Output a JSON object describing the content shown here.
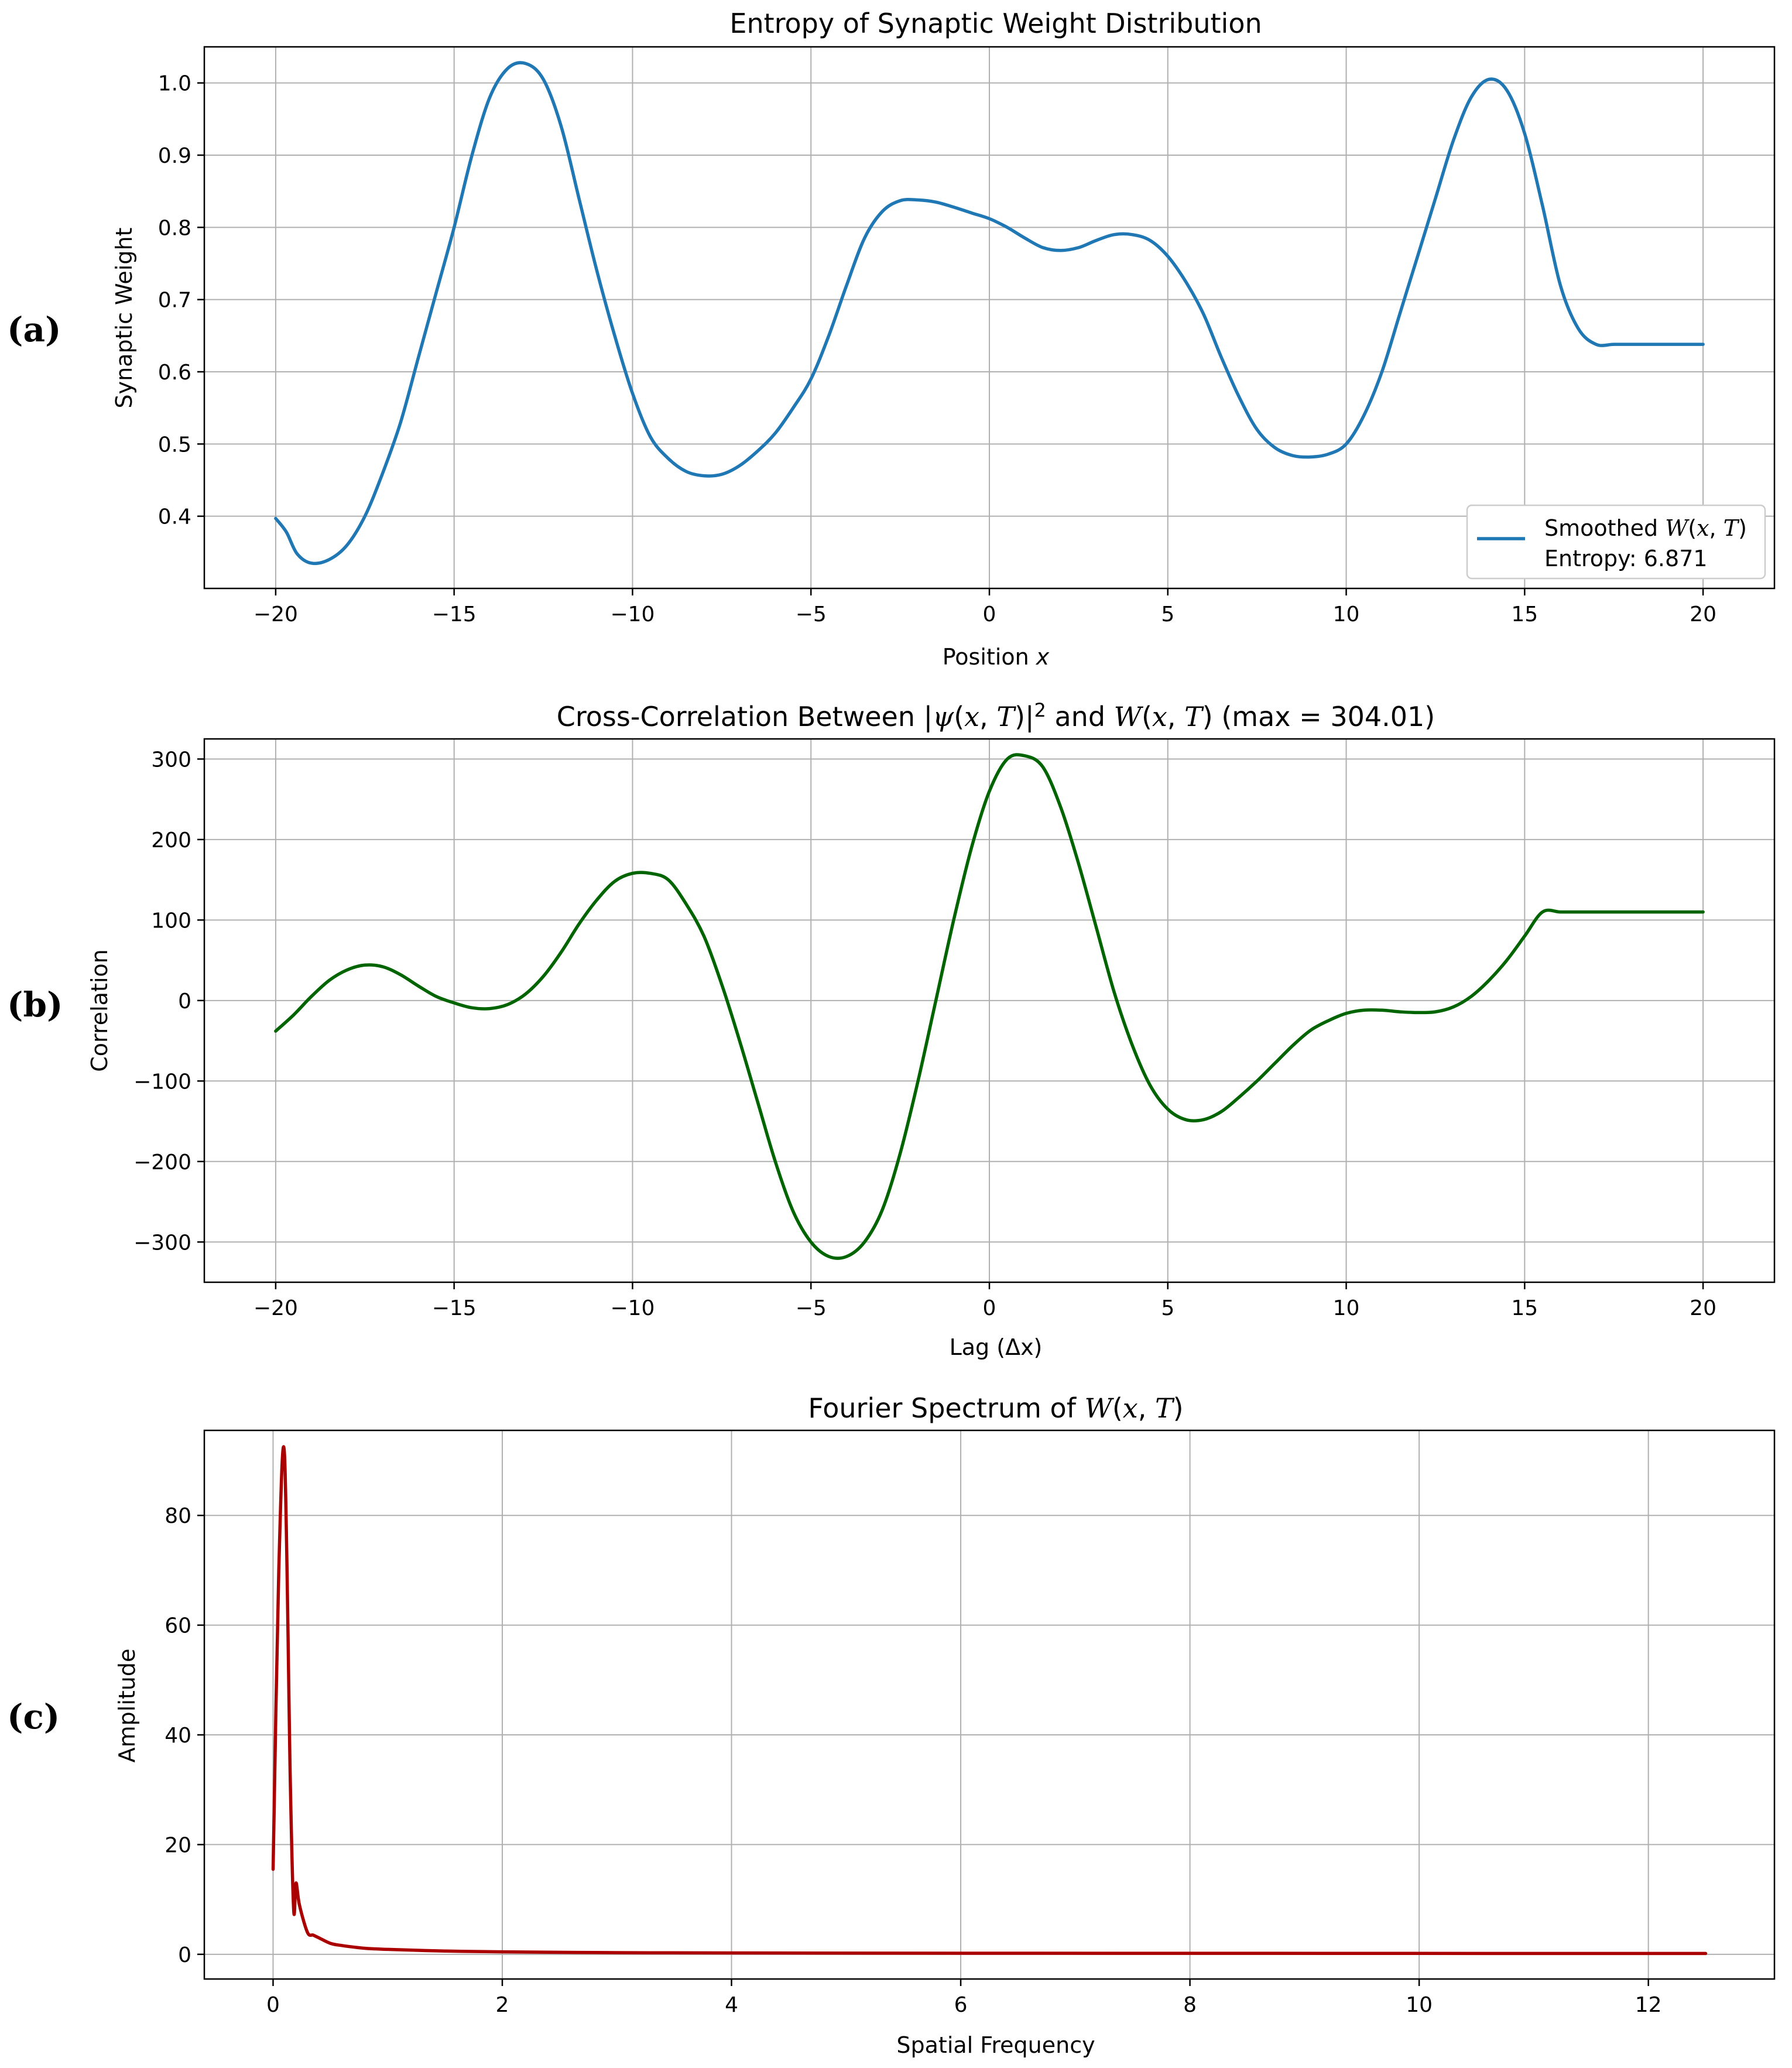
{
  "panels": [
    {
      "letter": "(a)"
    },
    {
      "letter": "(b)"
    },
    {
      "letter": "(c)"
    }
  ],
  "chart_data": [
    {
      "type": "line",
      "title": "Entropy of Synaptic Weight Distribution",
      "xlabel": "Position x",
      "ylabel": "Synaptic Weight",
      "xlim": [
        -22,
        22
      ],
      "ylim": [
        0.3,
        1.05
      ],
      "xticks": [
        -20,
        -15,
        -10,
        -5,
        0,
        5,
        10,
        15,
        20
      ],
      "yticks": [
        0.4,
        0.5,
        0.6,
        0.7,
        0.8,
        0.9,
        1.0
      ],
      "xtick_labels": [
        "−20",
        "−15",
        "−10",
        "−5",
        "0",
        "5",
        "10",
        "15",
        "20"
      ],
      "ytick_labels": [
        "0.4",
        "0.5",
        "0.6",
        "0.7",
        "0.8",
        "0.9",
        "1.0"
      ],
      "grid": true,
      "color": "#1f77b4",
      "legend": {
        "position": "lower right",
        "entries": [
          "Smoothed W(x, T)",
          "Entropy: 6.871"
        ]
      },
      "series": [
        {
          "name": "Smoothed W(x, T)",
          "x": [
            -20,
            -19.7,
            -19.4,
            -19,
            -18.5,
            -18,
            -17.5,
            -17,
            -16.5,
            -16,
            -15.5,
            -15,
            -14.5,
            -14,
            -13.5,
            -13,
            -12.5,
            -12,
            -11.5,
            -11,
            -10.5,
            -10,
            -9.5,
            -9,
            -8.5,
            -8,
            -7.5,
            -7,
            -6.5,
            -6,
            -5.5,
            -5,
            -4.5,
            -4,
            -3.5,
            -3,
            -2.5,
            -2,
            -1.5,
            -1,
            -0.5,
            0,
            0.5,
            1,
            1.5,
            2,
            2.5,
            3,
            3.5,
            4,
            4.5,
            5,
            5.5,
            6,
            6.5,
            7,
            7.5,
            8,
            8.5,
            9,
            9.5,
            10,
            10.5,
            11,
            11.5,
            12,
            12.5,
            13,
            13.5,
            14,
            14.5,
            15,
            15.5,
            16,
            16.5,
            17,
            17.5,
            18,
            18.5,
            19,
            19.5,
            19.8,
            20
          ],
          "y": [
            0.397,
            0.378,
            0.348,
            0.335,
            0.34,
            0.36,
            0.4,
            0.46,
            0.53,
            0.62,
            0.71,
            0.8,
            0.9,
            0.98,
            1.02,
            1.027,
            1.005,
            0.94,
            0.84,
            0.74,
            0.65,
            0.57,
            0.51,
            0.48,
            0.462,
            0.456,
            0.458,
            0.47,
            0.49,
            0.515,
            0.55,
            0.59,
            0.65,
            0.72,
            0.785,
            0.822,
            0.837,
            0.838,
            0.835,
            0.828,
            0.82,
            0.812,
            0.8,
            0.785,
            0.772,
            0.768,
            0.772,
            0.782,
            0.79,
            0.79,
            0.782,
            0.76,
            0.725,
            0.68,
            0.62,
            0.565,
            0.52,
            0.495,
            0.484,
            0.482,
            0.486,
            0.5,
            0.54,
            0.6,
            0.68,
            0.76,
            0.84,
            0.92,
            0.98,
            1.005,
            0.99,
            0.93,
            0.83,
            0.72,
            0.66,
            0.638,
            0.638,
            0.638,
            0.638,
            0.638,
            0.638,
            0.638,
            0.638
          ]
        }
      ]
    },
    {
      "type": "line",
      "title": "Cross-Correlation Between |ψ(x, T)|² and W(x, T) (max = 304.01)",
      "xlabel": "Lag (Δx)",
      "ylabel": "Correlation",
      "xlim": [
        -22,
        22
      ],
      "ylim": [
        -350,
        325
      ],
      "xticks": [
        -20,
        -15,
        -10,
        -5,
        0,
        5,
        10,
        15,
        20
      ],
      "yticks": [
        -300,
        -200,
        -100,
        0,
        100,
        200,
        300
      ],
      "xtick_labels": [
        "−20",
        "−15",
        "−10",
        "−5",
        "0",
        "5",
        "10",
        "15",
        "20"
      ],
      "ytick_labels": [
        "−300",
        "−200",
        "−100",
        "0",
        "100",
        "200",
        "300"
      ],
      "grid": true,
      "color": "#006400",
      "series": [
        {
          "x": [
            -20,
            -19.5,
            -19,
            -18.5,
            -18,
            -17.5,
            -17,
            -16.5,
            -16,
            -15.5,
            -15,
            -14.5,
            -14,
            -13.5,
            -13,
            -12.5,
            -12,
            -11.5,
            -11,
            -10.5,
            -10,
            -9.5,
            -9,
            -8.5,
            -8,
            -7.5,
            -7,
            -6.5,
            -6,
            -5.5,
            -5,
            -4.5,
            -4,
            -3.5,
            -3,
            -2.5,
            -2,
            -1.5,
            -1,
            -0.5,
            0,
            0.5,
            1,
            1.5,
            2,
            2.5,
            3,
            3.5,
            4,
            4.5,
            5,
            5.5,
            6,
            6.5,
            7,
            7.5,
            8,
            8.5,
            9,
            9.5,
            10,
            10.5,
            11,
            11.5,
            12,
            12.5,
            13,
            13.5,
            14,
            14.5,
            15,
            15.5,
            16,
            16.5,
            17,
            17.5,
            18,
            18.5,
            19,
            19.5,
            20
          ],
          "y": [
            -38,
            -18,
            5,
            25,
            38,
            44,
            42,
            32,
            18,
            5,
            -3,
            -9,
            -10,
            -5,
            8,
            30,
            60,
            95,
            125,
            148,
            158,
            158,
            150,
            120,
            80,
            20,
            -50,
            -125,
            -200,
            -262,
            -300,
            -318,
            -318,
            -300,
            -260,
            -190,
            -100,
            0,
            100,
            190,
            260,
            300,
            304,
            290,
            240,
            170,
            90,
            10,
            -55,
            -105,
            -135,
            -148,
            -148,
            -138,
            -120,
            -100,
            -78,
            -56,
            -37,
            -25,
            -16,
            -12,
            -12,
            -14,
            -15,
            -14,
            -8,
            5,
            25,
            50,
            80,
            110,
            110,
            110,
            110,
            110,
            110,
            110,
            110,
            110,
            110
          ]
        }
      ]
    },
    {
      "type": "line",
      "title": "Fourier Spectrum of W(x, T)",
      "xlabel": "Spatial Frequency",
      "ylabel": "Amplitude",
      "xlim": [
        -0.6,
        13.1
      ],
      "ylim": [
        -4.5,
        95.5
      ],
      "xticks": [
        0,
        2,
        4,
        6,
        8,
        10,
        12
      ],
      "yticks": [
        0,
        20,
        40,
        60,
        80
      ],
      "xtick_labels": [
        "0",
        "2",
        "4",
        "6",
        "8",
        "10",
        "12"
      ],
      "ytick_labels": [
        "0",
        "20",
        "40",
        "60",
        "80"
      ],
      "grid": true,
      "color": "#aa0000",
      "series": [
        {
          "x": [
            0.0,
            0.05,
            0.1,
            0.15,
            0.18,
            0.2,
            0.23,
            0.3,
            0.35,
            0.4,
            0.5,
            0.6,
            0.8,
            1.0,
            1.5,
            2.0,
            3.0,
            4.0,
            6.0,
            8.0,
            10.0,
            12.0,
            12.5
          ],
          "y": [
            15.5,
            70,
            91,
            32,
            8,
            13,
            9,
            4,
            3.5,
            3,
            2,
            1.6,
            1.1,
            0.9,
            0.6,
            0.45,
            0.3,
            0.25,
            0.2,
            0.18,
            0.16,
            0.15,
            0.15
          ]
        }
      ]
    }
  ]
}
